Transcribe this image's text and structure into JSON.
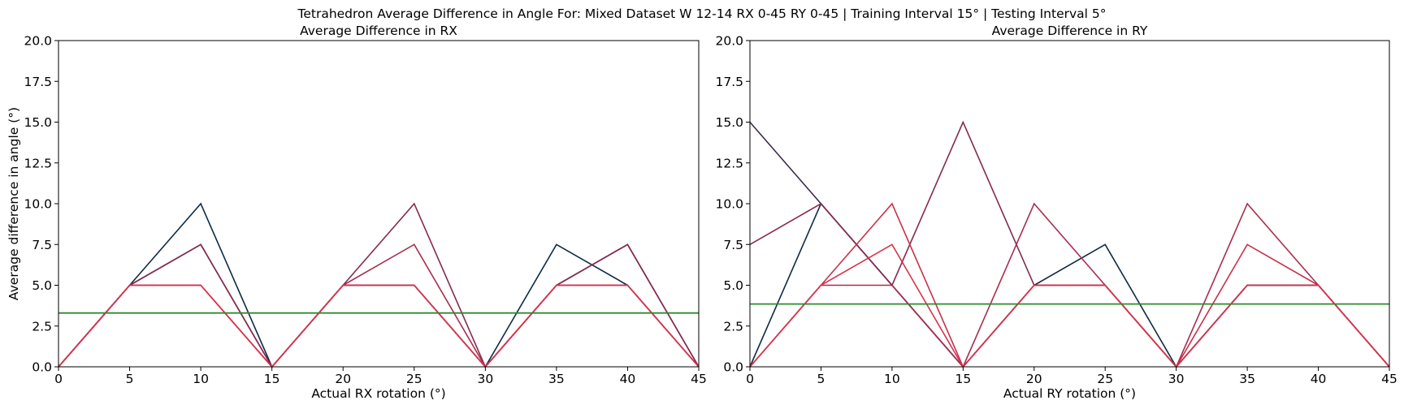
{
  "figure": {
    "suptitle": "Tetrahedron Average Difference in Angle For: Mixed Dataset W 12-14 RX 0-45 RY 0-45 | Training Interval 15° | Testing Interval 5°"
  },
  "colors": {
    "series": [
      "#0d2b45",
      "#3b2b4f",
      "#862a4f",
      "#a82d4f",
      "#c8304a",
      "#d8324a"
    ],
    "mean_line": "#2e8b2e"
  },
  "chart_data": [
    {
      "type": "line",
      "title": "Average Difference in RX",
      "xlabel": "Actual RX rotation (°)",
      "ylabel": "Average difference in angle (°)",
      "xlim": [
        0,
        45
      ],
      "ylim": [
        0,
        20
      ],
      "xticks": [
        0,
        5,
        10,
        15,
        20,
        25,
        30,
        35,
        40,
        45
      ],
      "yticks": [
        "0.0",
        "2.5",
        "5.0",
        "7.5",
        "10.0",
        "12.5",
        "15.0",
        "17.5",
        "20.0"
      ],
      "grid": false,
      "x": [
        0,
        5,
        10,
        15,
        20,
        25,
        30,
        35,
        40,
        45
      ],
      "series": [
        {
          "values": [
            0,
            5,
            10,
            0,
            5,
            5,
            0,
            7.5,
            5,
            0
          ]
        },
        {
          "values": [
            0,
            5,
            7.5,
            0,
            5,
            5,
            0,
            5,
            7.5,
            0
          ]
        },
        {
          "values": [
            0,
            5,
            7.5,
            0,
            5,
            10,
            0,
            5,
            7.5,
            0
          ]
        },
        {
          "values": [
            0,
            5,
            5,
            0,
            5,
            7.5,
            0,
            5,
            5,
            0
          ]
        },
        {
          "values": [
            0,
            5,
            5,
            0,
            5,
            5,
            0,
            5,
            5,
            0
          ]
        },
        {
          "values": [
            0,
            5,
            5,
            0,
            5,
            5,
            0,
            5,
            5,
            0
          ]
        }
      ],
      "mean_value": 3.3
    },
    {
      "type": "line",
      "title": "Average Difference in RY",
      "xlabel": "Actual RY rotation (°)",
      "ylabel": "",
      "xlim": [
        0,
        45
      ],
      "ylim": [
        0,
        20
      ],
      "xticks": [
        0,
        5,
        10,
        15,
        20,
        25,
        30,
        35,
        40,
        45
      ],
      "yticks": [
        "0.0",
        "2.5",
        "5.0",
        "7.5",
        "10.0",
        "12.5",
        "15.0",
        "17.5",
        "20.0"
      ],
      "grid": false,
      "x": [
        0,
        5,
        10,
        15,
        20,
        25,
        30,
        35,
        40,
        45
      ],
      "series": [
        {
          "values": [
            0,
            10,
            5,
            0,
            5,
            7.5,
            0,
            5,
            5,
            0
          ]
        },
        {
          "values": [
            15,
            10,
            5,
            0,
            5,
            5,
            0,
            5,
            5,
            0
          ]
        },
        {
          "values": [
            7.5,
            10,
            5,
            15,
            5,
            5,
            0,
            5,
            5,
            0
          ]
        },
        {
          "values": [
            0,
            5,
            5,
            0,
            10,
            5,
            0,
            10,
            5,
            0
          ]
        },
        {
          "values": [
            0,
            5,
            10,
            0,
            5,
            5,
            0,
            7.5,
            5,
            0
          ]
        },
        {
          "values": [
            0,
            5,
            7.5,
            0,
            5,
            5,
            0,
            5,
            5,
            0
          ]
        }
      ],
      "mean_value": 3.85
    }
  ]
}
